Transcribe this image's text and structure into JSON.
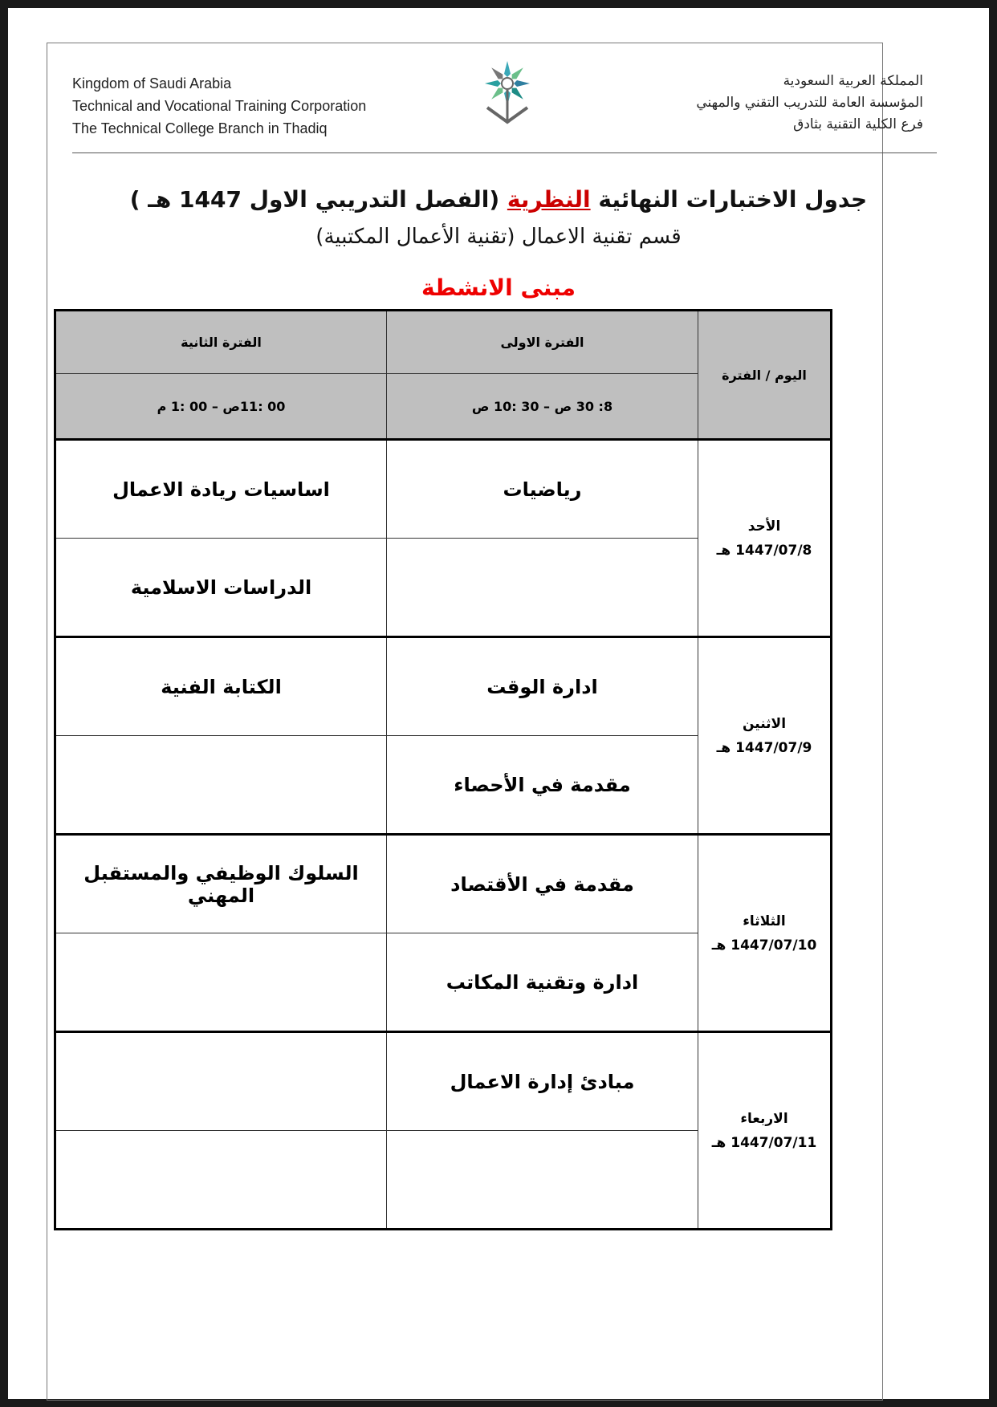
{
  "header": {
    "english": [
      "Kingdom of Saudi Arabia",
      "Technical and Vocational Training Corporation",
      "The Technical College Branch in Thadiq"
    ],
    "arabic": [
      "المملكة العربية السعودية",
      "المؤسسة العامة للتدريب التقني والمهني",
      "فرع الكلية التقنية بثادق"
    ]
  },
  "title": {
    "part1": "جدول الاختبارات النهائية ",
    "highlight": "النظرية",
    "part2": " (الفصل التدريبي الاول  1447 هـ )",
    "highlight_color": "#c00000"
  },
  "subtitle": "قسم تقنية الاعمال (تقنية الأعمال المكتبية)",
  "building": "مبنى الانشطة",
  "table": {
    "day_header": "اليوم / الفترة",
    "period1": "الفترة الاولى",
    "period1_time": "8: 30 ص – 30 :10 ص",
    "period2": "الفترة الثانية",
    "period2_time": "00 :11ص –  00 :1 م",
    "days": [
      {
        "day": "الأحد",
        "date": "1447/07/8 هـ",
        "rows": [
          [
            "رياضيات",
            "اساسيات ريادة الاعمال"
          ],
          [
            "",
            "الدراسات الاسلامية"
          ]
        ]
      },
      {
        "day": "الاثنين",
        "date": "1447/07/9 هـ",
        "rows": [
          [
            "ادارة الوقت",
            "الكتابة الفنية"
          ],
          [
            "مقدمة في الأحصاء",
            ""
          ]
        ]
      },
      {
        "day": "الثلاثاء",
        "date": "1447/07/10 هـ",
        "rows": [
          [
            "مقدمة في الأقتصاد",
            "السلوك الوظيفي والمستقبل المهني"
          ],
          [
            "ادارة وتقنية المكاتب",
            ""
          ]
        ]
      },
      {
        "day": "الاربعاء",
        "date": "1447/07/11 هـ",
        "rows": [
          [
            "مبادئ إدارة الاعمال",
            ""
          ],
          [
            "",
            ""
          ]
        ]
      }
    ]
  }
}
